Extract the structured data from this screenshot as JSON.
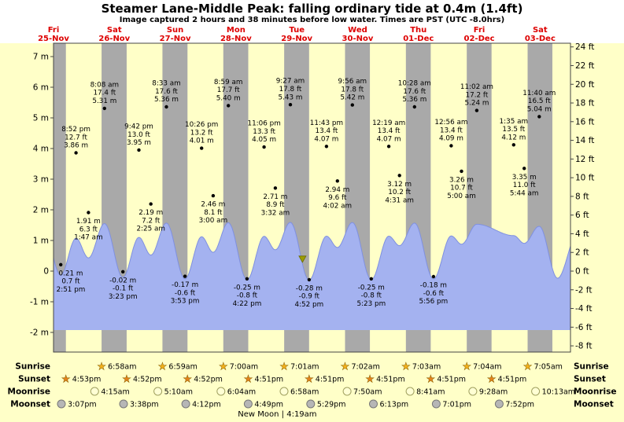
{
  "title": "Steamer Lane-Middle Peak: falling ordinary tide at 0.4m (1.4ft)",
  "subtitle": "Image captured 2 hours and 38 minutes before low water. Times are PST (UTC -8.0hrs)",
  "days": [
    {
      "weekday": "Fri",
      "date": "25-Nov"
    },
    {
      "weekday": "Sat",
      "date": "26-Nov"
    },
    {
      "weekday": "Sun",
      "date": "27-Nov"
    },
    {
      "weekday": "Mon",
      "date": "28-Nov"
    },
    {
      "weekday": "Tue",
      "date": "29-Nov"
    },
    {
      "weekday": "Wed",
      "date": "30-Nov"
    },
    {
      "weekday": "Thu",
      "date": "01-Dec"
    },
    {
      "weekday": "Fri",
      "date": "02-Dec"
    },
    {
      "weekday": "Sat",
      "date": "03-Dec"
    }
  ],
  "y_axis": {
    "left": {
      "unit": "m",
      "labels": [
        "7 m",
        "6 m",
        "5 m",
        "4 m",
        "3 m",
        "2 m",
        "1 m",
        "0",
        "-1 m",
        "-2 m"
      ],
      "values": [
        7,
        6,
        5,
        4,
        3,
        2,
        1,
        0,
        -1,
        -2
      ]
    },
    "right": {
      "unit": "ft",
      "labels": [
        "24 ft",
        "22 ft",
        "20 ft",
        "18 ft",
        "16 ft",
        "14 ft",
        "12 ft",
        "10 ft",
        "8 ft",
        "6 ft",
        "4 ft",
        "2 ft",
        "0 ft",
        "-2 ft",
        "-4 ft",
        "-6 ft",
        "-8 ft"
      ],
      "values": [
        24,
        22,
        20,
        18,
        16,
        14,
        12,
        10,
        8,
        6,
        4,
        2,
        0,
        -2,
        -4,
        -6,
        -8
      ]
    }
  },
  "chart_data": {
    "type": "area",
    "title": "Steamer Lane-Middle Peak tide curve",
    "x_days": [
      "Fri 25-Nov",
      "Sat 26-Nov",
      "Sun 27-Nov",
      "Mon 28-Nov",
      "Tue 29-Nov",
      "Wed 30-Nov",
      "Thu 01-Dec",
      "Fri 02-Dec",
      "Sat 03-Dec"
    ],
    "ylim_m": [
      -2,
      7
    ],
    "ylim_ft": [
      -8,
      24
    ],
    "tide_events": [
      {
        "day": 0,
        "type": "low",
        "time": "2:51 pm",
        "height_m": "0.21",
        "height_ft": "0.7"
      },
      {
        "day": 0,
        "type": "high",
        "time": "8:52 pm",
        "height_m": "3.86",
        "height_ft": "12.7"
      },
      {
        "day": 1,
        "type": "low",
        "time": "1:47 am",
        "height_m": "1.91",
        "height_ft": "6.3"
      },
      {
        "day": 1,
        "type": "high",
        "time": "8:08 am",
        "height_m": "5.31",
        "height_ft": "17.4"
      },
      {
        "day": 1,
        "type": "low",
        "time": "3:23 pm",
        "height_m": "-0.02",
        "height_ft": "-0.1"
      },
      {
        "day": 1,
        "type": "high",
        "time": "9:42 pm",
        "height_m": "3.95",
        "height_ft": "13.0"
      },
      {
        "day": 2,
        "type": "low",
        "time": "2:25 am",
        "height_m": "2.19",
        "height_ft": "7.2"
      },
      {
        "day": 2,
        "type": "high",
        "time": "8:33 am",
        "height_m": "5.36",
        "height_ft": "17.6"
      },
      {
        "day": 2,
        "type": "low",
        "time": "3:53 pm",
        "height_m": "-0.17",
        "height_ft": "-0.6"
      },
      {
        "day": 2,
        "type": "high",
        "time": "10:26 pm",
        "height_m": "4.01",
        "height_ft": "13.2"
      },
      {
        "day": 3,
        "type": "low",
        "time": "3:00 am",
        "height_m": "2.46",
        "height_ft": "8.1"
      },
      {
        "day": 3,
        "type": "high",
        "time": "8:59 am",
        "height_m": "5.40",
        "height_ft": "17.7"
      },
      {
        "day": 3,
        "type": "low",
        "time": "4:22 pm",
        "height_m": "-0.25",
        "height_ft": "-0.8"
      },
      {
        "day": 3,
        "type": "high",
        "time": "11:06 pm",
        "height_m": "4.05",
        "height_ft": "13.3"
      },
      {
        "day": 4,
        "type": "low",
        "time": "3:32 am",
        "height_m": "2.71",
        "height_ft": "8.9"
      },
      {
        "day": 4,
        "type": "high",
        "time": "9:27 am",
        "height_m": "5.43",
        "height_ft": "17.8"
      },
      {
        "day": 4,
        "type": "low",
        "time": "4:52 pm",
        "height_m": "-0.28",
        "height_ft": "-0.9"
      },
      {
        "day": 4,
        "type": "high",
        "time": "11:43 pm",
        "height_m": "4.07",
        "height_ft": "13.4"
      },
      {
        "day": 5,
        "type": "low",
        "time": "4:02 am",
        "height_m": "2.94",
        "height_ft": "9.6"
      },
      {
        "day": 5,
        "type": "high",
        "time": "9:56 am",
        "height_m": "5.42",
        "height_ft": "17.8"
      },
      {
        "day": 5,
        "type": "low",
        "time": "5:23 pm",
        "height_m": "-0.25",
        "height_ft": "-0.8"
      },
      {
        "day": 6,
        "type": "high",
        "time": "12:19 am",
        "height_m": "4.07",
        "height_ft": "13.4"
      },
      {
        "day": 6,
        "type": "low",
        "time": "4:31 am",
        "height_m": "3.12",
        "height_ft": "10.2"
      },
      {
        "day": 6,
        "type": "high",
        "time": "10:28 am",
        "height_m": "5.36",
        "height_ft": "17.6"
      },
      {
        "day": 6,
        "type": "low",
        "time": "5:56 pm",
        "height_m": "-0.18",
        "height_ft": "-0.6"
      },
      {
        "day": 7,
        "type": "high",
        "time": "12:56 am",
        "height_m": "4.09",
        "height_ft": "13.4"
      },
      {
        "day": 7,
        "type": "low",
        "time": "5:00 am",
        "height_m": "3.26",
        "height_ft": "10.7"
      },
      {
        "day": 7,
        "type": "high",
        "time": "11:02 am",
        "height_m": "5.24",
        "height_ft": "17.2"
      },
      {
        "day": 8,
        "type": "high",
        "time": "1:35 am",
        "height_m": "4.12",
        "height_ft": "13.5"
      },
      {
        "day": 8,
        "type": "low",
        "time": "5:44 am",
        "height_m": "3.35",
        "height_ft": "11.0"
      },
      {
        "day": 8,
        "type": "high",
        "time": "11:40 am",
        "height_m": "5.04",
        "height_ft": "16.5"
      }
    ],
    "current_marker": {
      "day": 4,
      "time": "2:14 pm",
      "height_m": "0.4"
    },
    "colors": {
      "background": "#ffffc8",
      "daylight_band": "#a9a9a9",
      "tide_fill": "#a4b2f0",
      "tide_line": "#7f90e0",
      "date_label": "#dd0000",
      "event_dot": "#000000",
      "marker": "#9c9c00",
      "sunrise_icon": "#f2b01c",
      "sunset_icon": "#e2821c",
      "moonrise_fill": "#ffffd4",
      "moonrise_stroke": "#a0a060",
      "moonset_fill": "#b6b6b6",
      "moonset_stroke": "#787878"
    }
  },
  "sun_moon": {
    "rows": [
      {
        "label": "Sunrise",
        "icon": "sunrise",
        "start_day": 1,
        "times": [
          "6:58am",
          "6:59am",
          "7:00am",
          "7:01am",
          "7:02am",
          "7:03am",
          "7:04am",
          "7:05am"
        ]
      },
      {
        "label": "Sunset",
        "icon": "sunset",
        "start_day": 0,
        "times": [
          "4:53pm",
          "4:52pm",
          "4:52pm",
          "4:51pm",
          "4:51pm",
          "4:51pm",
          "4:51pm",
          "4:51pm"
        ]
      },
      {
        "label": "Moonrise",
        "icon": "moonrise",
        "start_day": 1,
        "times": [
          "4:15am",
          "5:10am",
          "6:04am",
          "6:58am",
          "7:50am",
          "8:41am",
          "9:28am",
          "10:13am"
        ]
      },
      {
        "label": "Moonset",
        "icon": "moonset",
        "start_day": 0,
        "times": [
          "3:07pm",
          "3:38pm",
          "4:12pm",
          "4:49pm",
          "5:29pm",
          "6:13pm",
          "7:01pm",
          "7:52pm"
        ]
      }
    ],
    "footer": {
      "text": "New Moon | 4:19am",
      "day": 4,
      "time": "4:19am"
    }
  }
}
